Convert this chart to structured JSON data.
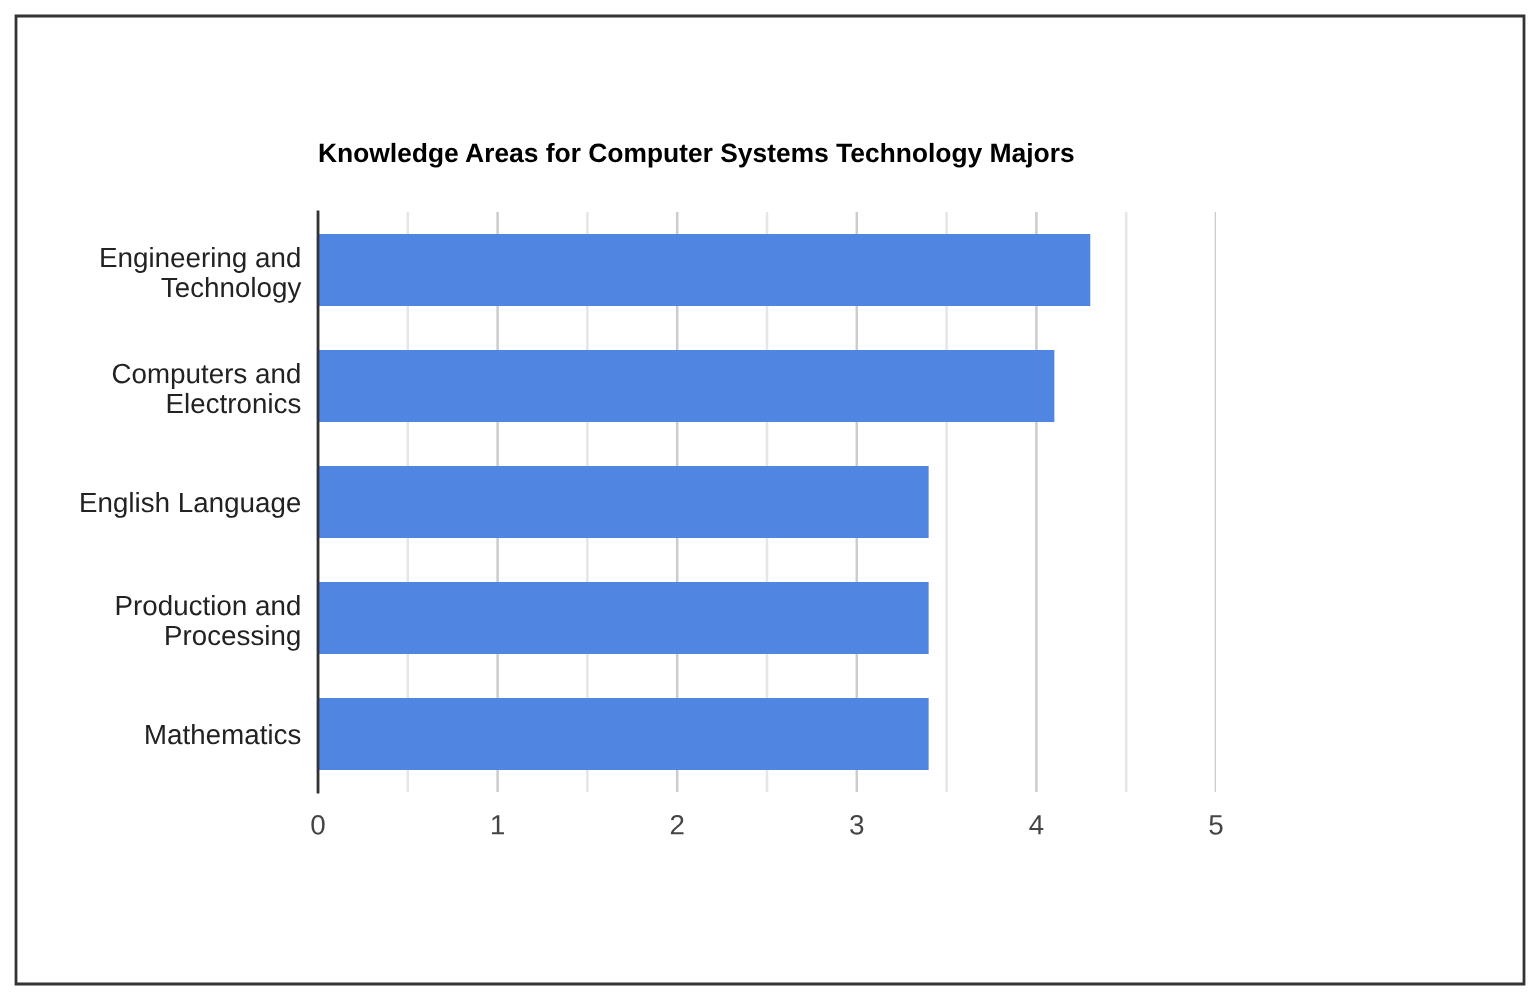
{
  "chart_data": {
    "type": "bar",
    "orientation": "horizontal",
    "title": "Knowledge Areas for Computer Systems Technology Majors",
    "categories": [
      "Engineering and\nTechnology",
      "Computers and\nElectronics",
      "English Language",
      "Production and\nProcessing",
      "Mathematics"
    ],
    "values": [
      4.3,
      4.1,
      3.4,
      3.4,
      3.4
    ],
    "color": "#5086e2",
    "xlim": [
      0,
      5
    ],
    "xticks": [
      0,
      {
        "value": 0.5,
        "label": null
      },
      1,
      {
        "value": 1.5,
        "label": null
      },
      2,
      {
        "value": 2.5,
        "label": null
      },
      3,
      {
        "value": 3.5,
        "label": null
      },
      4,
      {
        "value": 4.5,
        "label": null
      },
      5
    ],
    "grid": "x"
  }
}
